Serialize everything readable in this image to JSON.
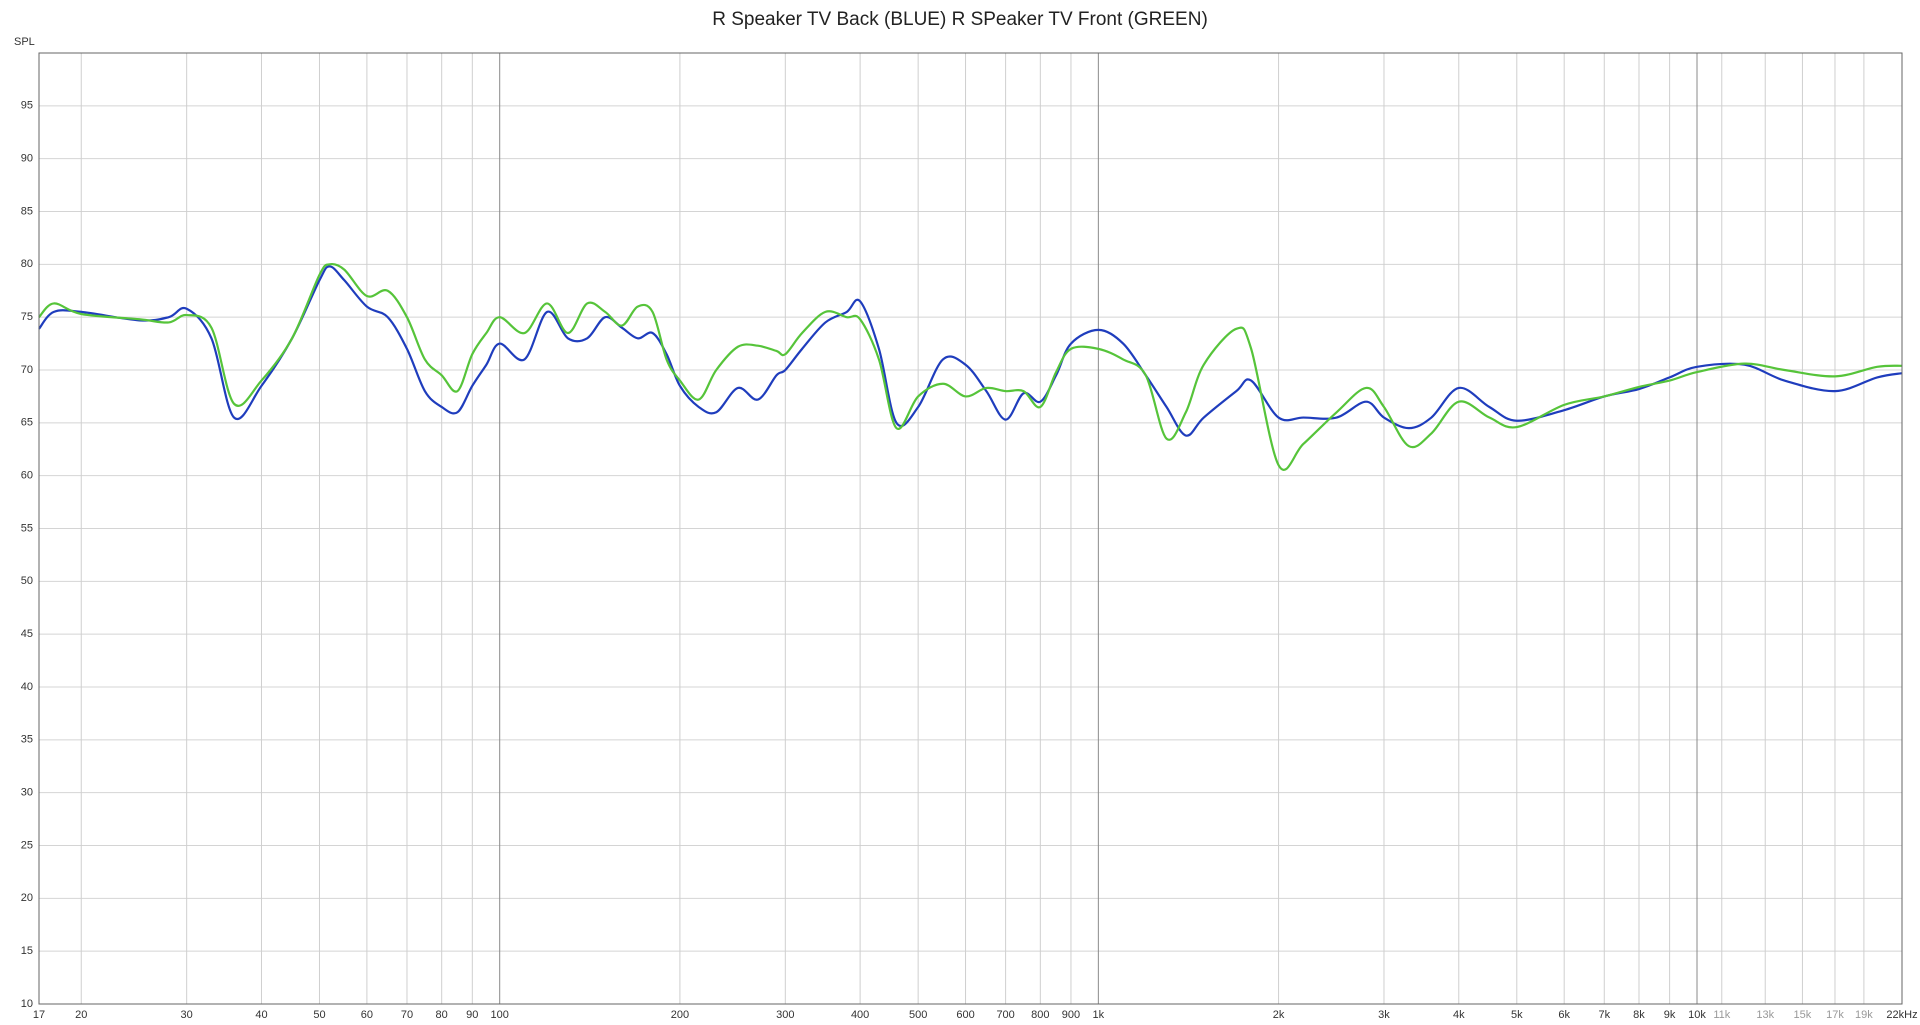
{
  "chart_data": {
    "type": "line",
    "title": "R Speaker TV Back (BLUE) R SPeaker TV Front (GREEN)",
    "y_label": "SPL",
    "x_scale": "log",
    "grid": true,
    "xlim": [
      17,
      22000
    ],
    "ylim": [
      10,
      100
    ],
    "yticks": [
      10,
      15,
      20,
      25,
      30,
      35,
      40,
      45,
      50,
      55,
      60,
      65,
      70,
      75,
      80,
      85,
      90,
      95
    ],
    "xticks": [
      17,
      20,
      30,
      40,
      50,
      60,
      70,
      80,
      90,
      100,
      200,
      300,
      400,
      500,
      600,
      700,
      800,
      900,
      {
        "value": 1000,
        "label": "1k"
      },
      {
        "value": 2000,
        "label": "2k"
      },
      {
        "value": 3000,
        "label": "3k"
      },
      {
        "value": 4000,
        "label": "4k"
      },
      {
        "value": 5000,
        "label": "5k"
      },
      {
        "value": 6000,
        "label": "6k"
      },
      {
        "value": 7000,
        "label": "7k"
      },
      {
        "value": 8000,
        "label": "8k"
      },
      {
        "value": 9000,
        "label": "9k"
      },
      {
        "value": 10000,
        "label": "10k"
      },
      {
        "value": 11000,
        "label": "11k"
      },
      {
        "value": 13000,
        "label": "13k"
      },
      {
        "value": 15000,
        "label": "15k"
      },
      {
        "value": 17000,
        "label": "17k"
      },
      {
        "value": 19000,
        "label": "19k"
      },
      {
        "value": 22000,
        "label": "22kHz"
      }
    ],
    "x": [
      17,
      18,
      20,
      25,
      28,
      30,
      33,
      36,
      40,
      45,
      50,
      52,
      55,
      60,
      65,
      70,
      75,
      80,
      85,
      90,
      95,
      100,
      110,
      120,
      130,
      140,
      150,
      160,
      170,
      180,
      190,
      200,
      215,
      230,
      250,
      270,
      290,
      300,
      320,
      350,
      380,
      400,
      430,
      460,
      500,
      550,
      600,
      650,
      700,
      750,
      800,
      850,
      900,
      1000,
      1100,
      1200,
      1300,
      1400,
      1500,
      1700,
      1800,
      2000,
      2200,
      2500,
      2800,
      3000,
      3300,
      3600,
      4000,
      4500,
      5000,
      6000,
      7000,
      8000,
      9000,
      10000,
      12000,
      14000,
      17000,
      20000,
      22000
    ],
    "series": [
      {
        "name": "R Speaker TV Back",
        "color": "#1f3dbd",
        "values": [
          73.9,
          75.5,
          75.5,
          74.7,
          75,
          75.8,
          73,
          65.5,
          68.5,
          73,
          78.5,
          79.8,
          78.5,
          76,
          75,
          72,
          68,
          66.5,
          66,
          68.5,
          70.5,
          72.5,
          71,
          75.5,
          73,
          73,
          75,
          74,
          73,
          73.5,
          71.5,
          68.5,
          66.5,
          66,
          68.3,
          67.2,
          69.5,
          70,
          72,
          74.5,
          75.5,
          76.5,
          72,
          65,
          66.5,
          71,
          70.5,
          68,
          65.3,
          67.8,
          67,
          69.5,
          72.5,
          73.8,
          72.5,
          69.5,
          66.5,
          63.8,
          65.5,
          68,
          69,
          65.5,
          65.5,
          65.5,
          67,
          65.5,
          64.5,
          65.5,
          68.3,
          66.5,
          65.2,
          66.2,
          67.5,
          68.2,
          69.3,
          70.3,
          70.5,
          69,
          68,
          69.3,
          69.7
        ]
      },
      {
        "name": "R SPeaker TV Front",
        "color": "#56c43a",
        "values": [
          75,
          76.3,
          75.3,
          74.8,
          74.5,
          75.2,
          74,
          66.8,
          69,
          73,
          79,
          80,
          79.5,
          77,
          77.5,
          75,
          71,
          69.5,
          68,
          71.5,
          73.5,
          75,
          73.5,
          76.3,
          73.5,
          76.3,
          75.5,
          74.2,
          76,
          75.5,
          71,
          69,
          67.2,
          70,
          72.2,
          72.3,
          71.8,
          71.5,
          73.5,
          75.5,
          75,
          74.8,
          71,
          64.5,
          67.5,
          68.7,
          67.5,
          68.3,
          68,
          68,
          66.5,
          69.8,
          72,
          72,
          71,
          69.5,
          63.5,
          66,
          70.5,
          73.9,
          72,
          61,
          63,
          66,
          68.3,
          66.5,
          62.8,
          64,
          67,
          65.5,
          64.6,
          66.7,
          67.5,
          68.4,
          69,
          69.8,
          70.6,
          70,
          69.4,
          70.3,
          70.4
        ]
      }
    ]
  }
}
